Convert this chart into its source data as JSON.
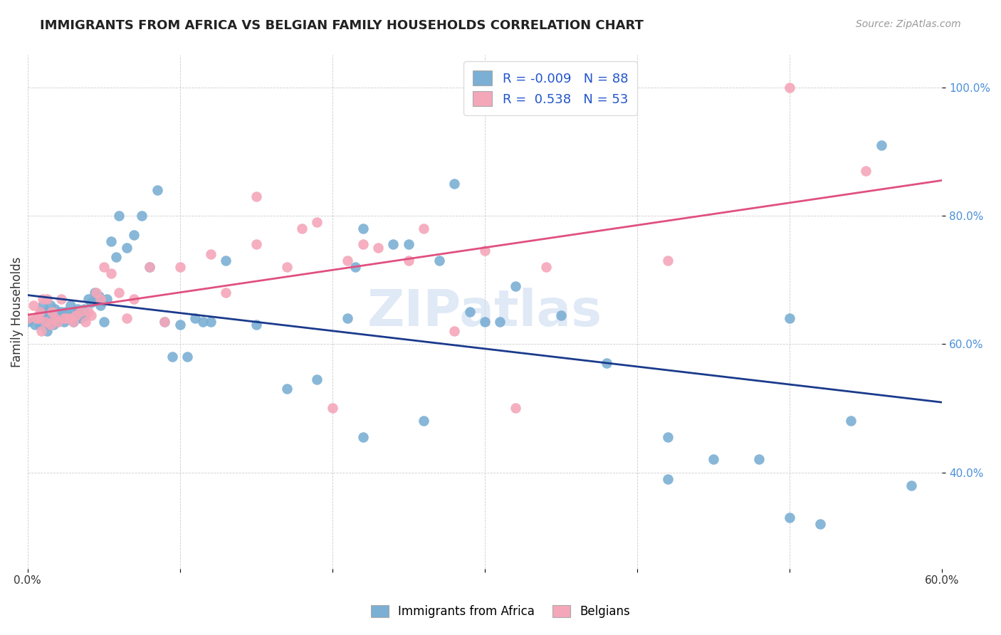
{
  "title": "IMMIGRANTS FROM AFRICA VS BELGIAN FAMILY HOUSEHOLDS CORRELATION CHART",
  "source": "Source: ZipAtlas.com",
  "ylabel": "Family Households",
  "legend_label1": "Immigrants from Africa",
  "legend_label2": "Belgians",
  "r1": -0.009,
  "n1": 88,
  "r2": 0.538,
  "n2": 53,
  "color_blue": "#7bafd4",
  "color_pink": "#f4a7b9",
  "line_blue": "#1a3a8c",
  "line_pink": "#e05080",
  "text_blue": "#2255cc",
  "text_pink": "#cc4477",
  "xlim": [
    0.0,
    0.6
  ],
  "ylim": [
    0.25,
    1.05
  ],
  "yticks": [
    0.4,
    0.6,
    0.8,
    1.0
  ],
  "ytick_labels": [
    "40.0%",
    "60.0%",
    "80.0%",
    "100.0%"
  ],
  "xticks": [
    0.0,
    0.1,
    0.2,
    0.3,
    0.4,
    0.5,
    0.6
  ],
  "xtick_labels": [
    "0.0%",
    "",
    "",
    "",
    "",
    "",
    "60.0%"
  ],
  "watermark": "ZIPatlas",
  "blue_x": [
    0.0,
    0.005,
    0.006,
    0.008,
    0.009,
    0.01,
    0.01,
    0.012,
    0.013,
    0.013,
    0.014,
    0.015,
    0.015,
    0.016,
    0.017,
    0.017,
    0.018,
    0.018,
    0.019,
    0.02,
    0.02,
    0.021,
    0.022,
    0.023,
    0.024,
    0.025,
    0.026,
    0.027,
    0.028,
    0.03,
    0.031,
    0.032,
    0.033,
    0.035,
    0.037,
    0.038,
    0.04,
    0.042,
    0.044,
    0.045,
    0.047,
    0.048,
    0.05,
    0.052,
    0.055,
    0.058,
    0.06,
    0.065,
    0.07,
    0.075,
    0.08,
    0.085,
    0.09,
    0.1,
    0.11,
    0.12,
    0.13,
    0.15,
    0.17,
    0.19,
    0.21,
    0.215,
    0.22,
    0.24,
    0.25,
    0.27,
    0.28,
    0.3,
    0.31,
    0.32,
    0.35,
    0.38,
    0.42,
    0.45,
    0.48,
    0.5,
    0.52,
    0.54,
    0.56,
    0.58,
    0.5,
    0.42,
    0.22,
    0.26,
    0.29,
    0.095,
    0.105,
    0.115
  ],
  "blue_y": [
    0.635,
    0.63,
    0.64,
    0.63,
    0.65,
    0.64,
    0.66,
    0.635,
    0.62,
    0.65,
    0.63,
    0.66,
    0.645,
    0.64,
    0.635,
    0.63,
    0.655,
    0.64,
    0.645,
    0.635,
    0.64,
    0.645,
    0.65,
    0.64,
    0.635,
    0.65,
    0.645,
    0.64,
    0.66,
    0.635,
    0.65,
    0.64,
    0.655,
    0.64,
    0.655,
    0.645,
    0.67,
    0.665,
    0.68,
    0.67,
    0.675,
    0.66,
    0.635,
    0.67,
    0.76,
    0.735,
    0.8,
    0.75,
    0.77,
    0.8,
    0.72,
    0.84,
    0.635,
    0.63,
    0.64,
    0.635,
    0.73,
    0.63,
    0.53,
    0.545,
    0.64,
    0.72,
    0.78,
    0.755,
    0.755,
    0.73,
    0.85,
    0.635,
    0.635,
    0.69,
    0.645,
    0.57,
    0.39,
    0.42,
    0.42,
    0.33,
    0.32,
    0.48,
    0.91,
    0.38,
    0.64,
    0.455,
    0.455,
    0.48,
    0.65,
    0.58,
    0.58,
    0.635
  ],
  "pink_x": [
    0.0,
    0.004,
    0.006,
    0.007,
    0.008,
    0.009,
    0.01,
    0.012,
    0.013,
    0.015,
    0.016,
    0.018,
    0.02,
    0.022,
    0.024,
    0.026,
    0.028,
    0.03,
    0.032,
    0.035,
    0.038,
    0.04,
    0.042,
    0.045,
    0.048,
    0.05,
    0.055,
    0.06,
    0.065,
    0.07,
    0.08,
    0.09,
    0.1,
    0.12,
    0.13,
    0.15,
    0.17,
    0.19,
    0.21,
    0.23,
    0.26,
    0.3,
    0.34,
    0.42,
    0.5,
    0.15,
    0.18,
    0.25,
    0.28,
    0.32,
    0.2,
    0.22,
    0.55
  ],
  "pink_y": [
    0.64,
    0.66,
    0.64,
    0.64,
    0.65,
    0.62,
    0.67,
    0.635,
    0.67,
    0.63,
    0.65,
    0.64,
    0.635,
    0.67,
    0.64,
    0.64,
    0.64,
    0.635,
    0.645,
    0.65,
    0.635,
    0.65,
    0.645,
    0.68,
    0.67,
    0.72,
    0.71,
    0.68,
    0.64,
    0.67,
    0.72,
    0.635,
    0.72,
    0.74,
    0.68,
    0.755,
    0.72,
    0.79,
    0.73,
    0.75,
    0.78,
    0.745,
    0.72,
    0.73,
    1.0,
    0.83,
    0.78,
    0.73,
    0.62,
    0.5,
    0.5,
    0.755,
    0.87
  ]
}
